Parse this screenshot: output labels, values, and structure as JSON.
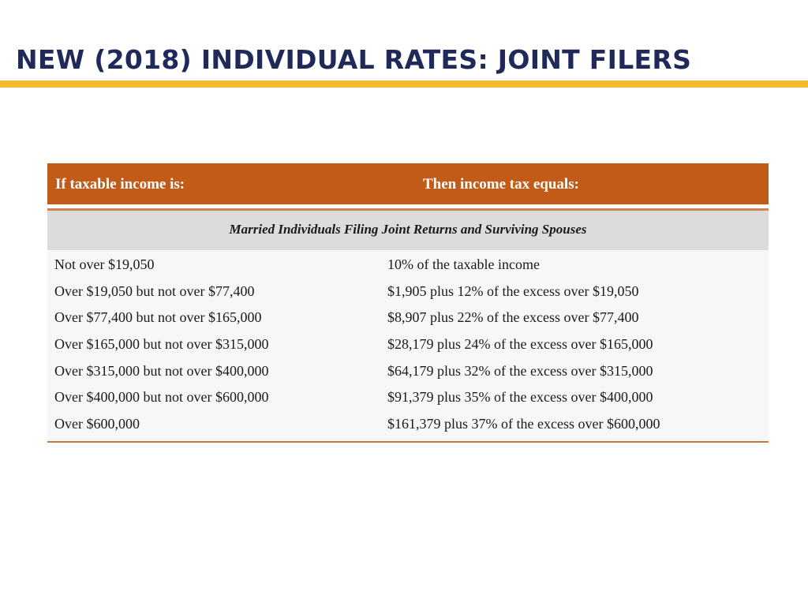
{
  "slide": {
    "title": "NEW (2018) INDIVIDUAL RATES: JOINT FILERS",
    "accent_color": "#f5b92e",
    "title_color": "#1f2a5a"
  },
  "table": {
    "header_color": "#c25b18",
    "headers": {
      "income": "If taxable income is:",
      "tax": "Then income tax equals:"
    },
    "section_title": "Married Individuals Filing Joint Returns and Surviving Spouses",
    "rows": [
      {
        "income": "Not over $19,050",
        "tax": "10% of the taxable income"
      },
      {
        "income": "Over $19,050 but not over $77,400",
        "tax": "$1,905 plus 12% of the excess over $19,050"
      },
      {
        "income": "Over $77,400 but not over $165,000",
        "tax": "$8,907 plus 22% of the excess over $77,400"
      },
      {
        "income": "Over $165,000 but not over $315,000",
        "tax": "$28,179 plus 24% of the excess over $165,000"
      },
      {
        "income": "Over $315,000 but not over $400,000",
        "tax": "$64,179 plus 32% of the excess over $315,000"
      },
      {
        "income": "Over $400,000 but not over $600,000",
        "tax": "$91,379 plus 35% of the excess over $400,000"
      },
      {
        "income": "Over $600,000",
        "tax": "$161,379 plus 37% of the excess over $600,000"
      }
    ]
  }
}
